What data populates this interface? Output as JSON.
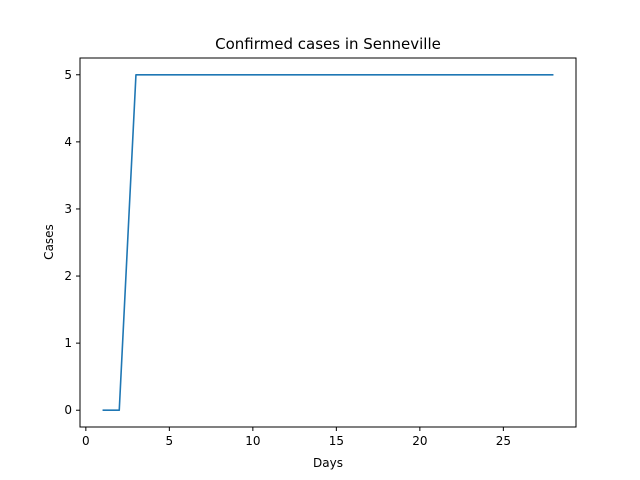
{
  "chart_data": {
    "type": "line",
    "title": "Confirmed cases in Senneville",
    "xlabel": "Days",
    "ylabel": "Cases",
    "xlim": [
      -0.35,
      29.35
    ],
    "ylim": [
      -0.25,
      5.25
    ],
    "xticks": [
      0,
      5,
      10,
      15,
      20,
      25
    ],
    "yticks": [
      0,
      1,
      2,
      3,
      4,
      5
    ],
    "grid": false,
    "legend": "none",
    "series": [
      {
        "color": "#1f77b4",
        "x": [
          1,
          2,
          3,
          4,
          5,
          6,
          7,
          8,
          9,
          10,
          11,
          12,
          13,
          14,
          15,
          16,
          17,
          18,
          19,
          20,
          21,
          22,
          23,
          24,
          25,
          26,
          27,
          28
        ],
        "y": [
          0,
          0,
          5,
          5,
          5,
          5,
          5,
          5,
          5,
          5,
          5,
          5,
          5,
          5,
          5,
          5,
          5,
          5,
          5,
          5,
          5,
          5,
          5,
          5,
          5,
          5,
          5,
          5
        ]
      }
    ]
  }
}
